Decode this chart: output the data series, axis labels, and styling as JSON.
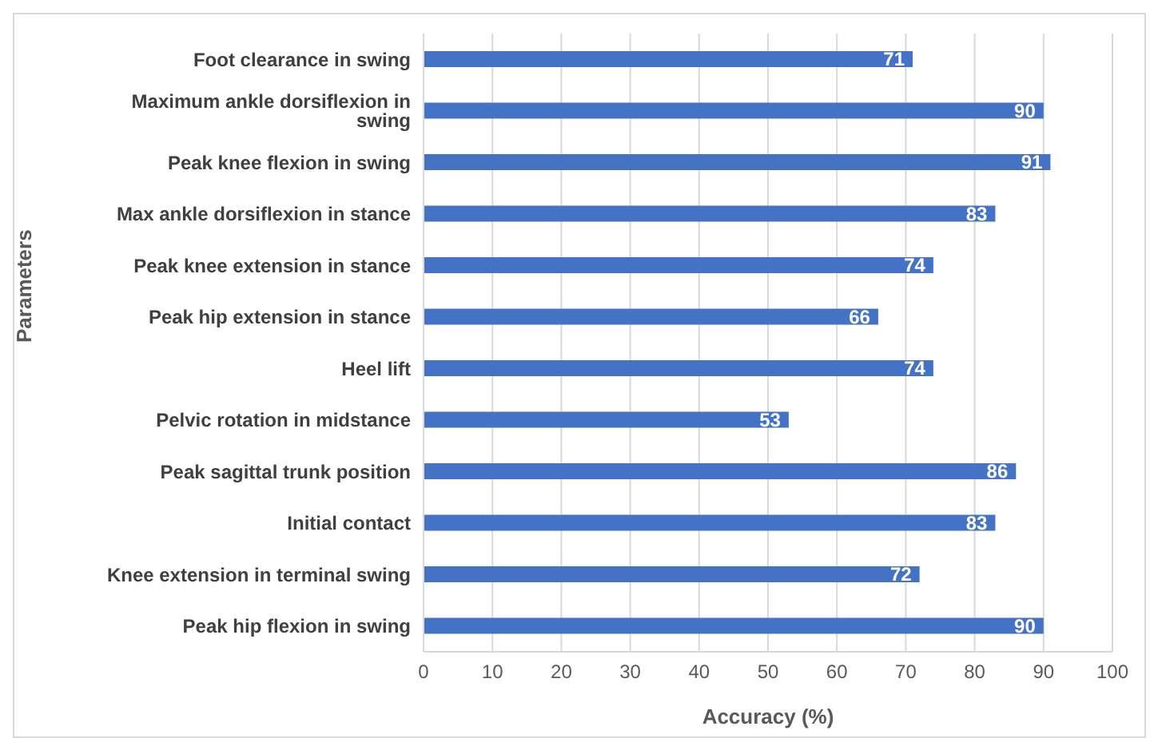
{
  "chart_data": {
    "type": "bar",
    "orientation": "horizontal",
    "xlabel": "Accuracy (%)",
    "ylabel": "Parameters",
    "categories": [
      "Foot clearance in swing",
      "Maximum ankle dorsiflexion in swing",
      "Peak knee flexion in swing",
      "Max ankle dorsiflexion in stance",
      "Peak knee extension in stance",
      "Peak hip extension in stance",
      "Heel lift",
      "Pelvic rotation in midstance",
      "Peak sagittal trunk position",
      "Initial contact",
      "Knee extension in terminal swing",
      "Peak hip flexion in swing"
    ],
    "values": [
      71,
      90,
      91,
      83,
      74,
      66,
      74,
      53,
      86,
      83,
      72,
      90
    ],
    "color": "#4472c4",
    "xlim": [
      0,
      100
    ],
    "xticks": [
      0,
      10,
      20,
      30,
      40,
      50,
      60,
      70,
      80,
      90,
      100
    ],
    "grid": "x",
    "data_labels": true
  }
}
